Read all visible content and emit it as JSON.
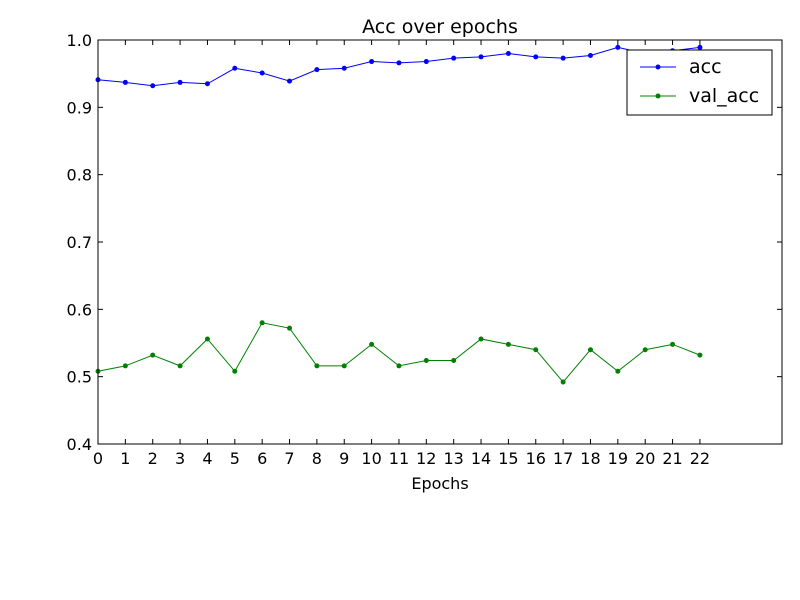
{
  "chart_data": {
    "type": "line",
    "title": "Acc over epochs",
    "xlabel": "Epochs",
    "ylabel": "",
    "xlim": [
      0,
      25
    ],
    "ylim": [
      0.4,
      1.0
    ],
    "x_ticks": [
      0,
      1,
      2,
      3,
      4,
      5,
      6,
      7,
      8,
      9,
      10,
      11,
      12,
      13,
      14,
      15,
      16,
      17,
      18,
      19,
      20,
      21,
      22
    ],
    "y_ticks": [
      0.4,
      0.5,
      0.6,
      0.7,
      0.8,
      0.9,
      1.0
    ],
    "y_tick_labels": [
      "0.4",
      "0.5",
      "0.6",
      "0.7",
      "0.8",
      "0.9",
      "1.0"
    ],
    "grid": false,
    "legend_position": "top-right",
    "x": [
      0,
      1,
      2,
      3,
      4,
      5,
      6,
      7,
      8,
      9,
      10,
      11,
      12,
      13,
      14,
      15,
      16,
      17,
      18,
      19,
      20,
      21,
      22
    ],
    "series": [
      {
        "name": "acc",
        "color": "#0000ff",
        "values": [
          0.941,
          0.937,
          0.932,
          0.937,
          0.935,
          0.958,
          0.951,
          0.939,
          0.956,
          0.958,
          0.968,
          0.966,
          0.968,
          0.973,
          0.975,
          0.98,
          0.975,
          0.973,
          0.977,
          0.989,
          0.98,
          0.984,
          0.989
        ]
      },
      {
        "name": "val_acc",
        "color": "#008000",
        "values": [
          0.508,
          0.516,
          0.532,
          0.516,
          0.556,
          0.508,
          0.58,
          0.572,
          0.516,
          0.516,
          0.548,
          0.516,
          0.524,
          0.524,
          0.556,
          0.548,
          0.54,
          0.492,
          0.54,
          0.508,
          0.54,
          0.548,
          0.532
        ]
      }
    ]
  }
}
